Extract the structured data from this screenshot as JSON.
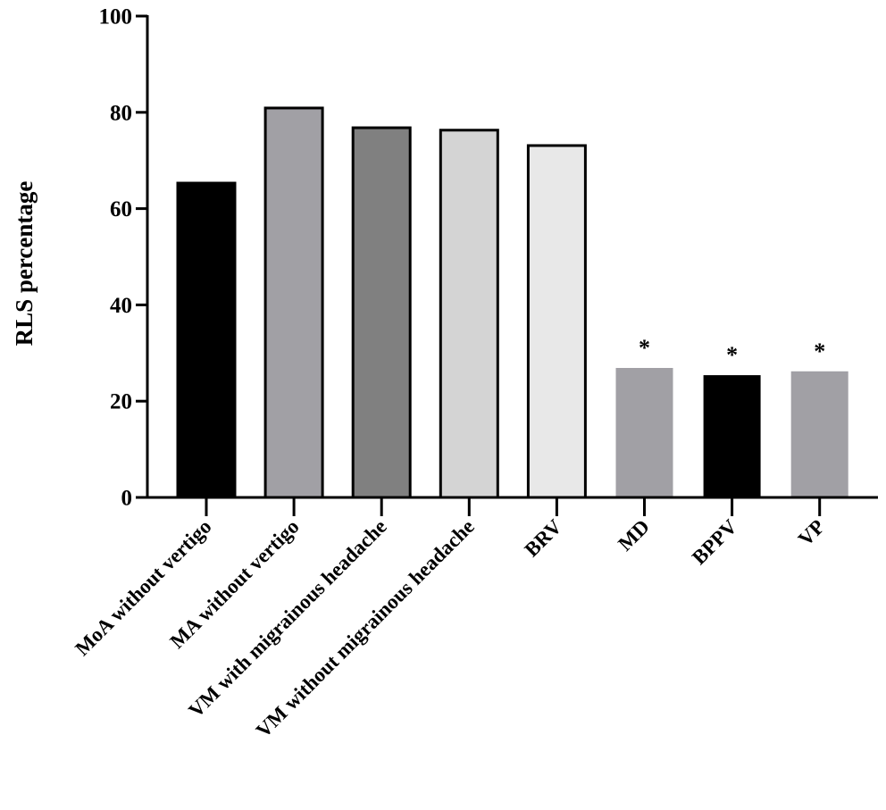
{
  "chart_data": {
    "type": "bar",
    "title": "",
    "xlabel": "",
    "ylabel": "RLS percentage",
    "ylim": [
      0,
      100
    ],
    "yticks": [
      0,
      20,
      40,
      60,
      80,
      100
    ],
    "grid": false,
    "legend": null,
    "categories": [
      "MoA without vertigo",
      "MA without vertigo",
      "VM with migrainous headache",
      "VM without migrainous headache",
      "BRV",
      "MD",
      "BPPV",
      "VP"
    ],
    "values": [
      65.3,
      80.9,
      76.8,
      76.3,
      73.1,
      26.9,
      25.4,
      26.2
    ],
    "bar_colors": [
      "#000000",
      "#a1a0a5",
      "#808080",
      "#d4d4d4",
      "#e8e8e8",
      "#a1a0a5",
      "#000000",
      "#a1a0a5"
    ],
    "bar_outlined": [
      true,
      true,
      true,
      true,
      true,
      false,
      false,
      false
    ],
    "annotations": [
      "",
      "",
      "",
      "",
      "",
      "*",
      "*",
      "*"
    ]
  }
}
